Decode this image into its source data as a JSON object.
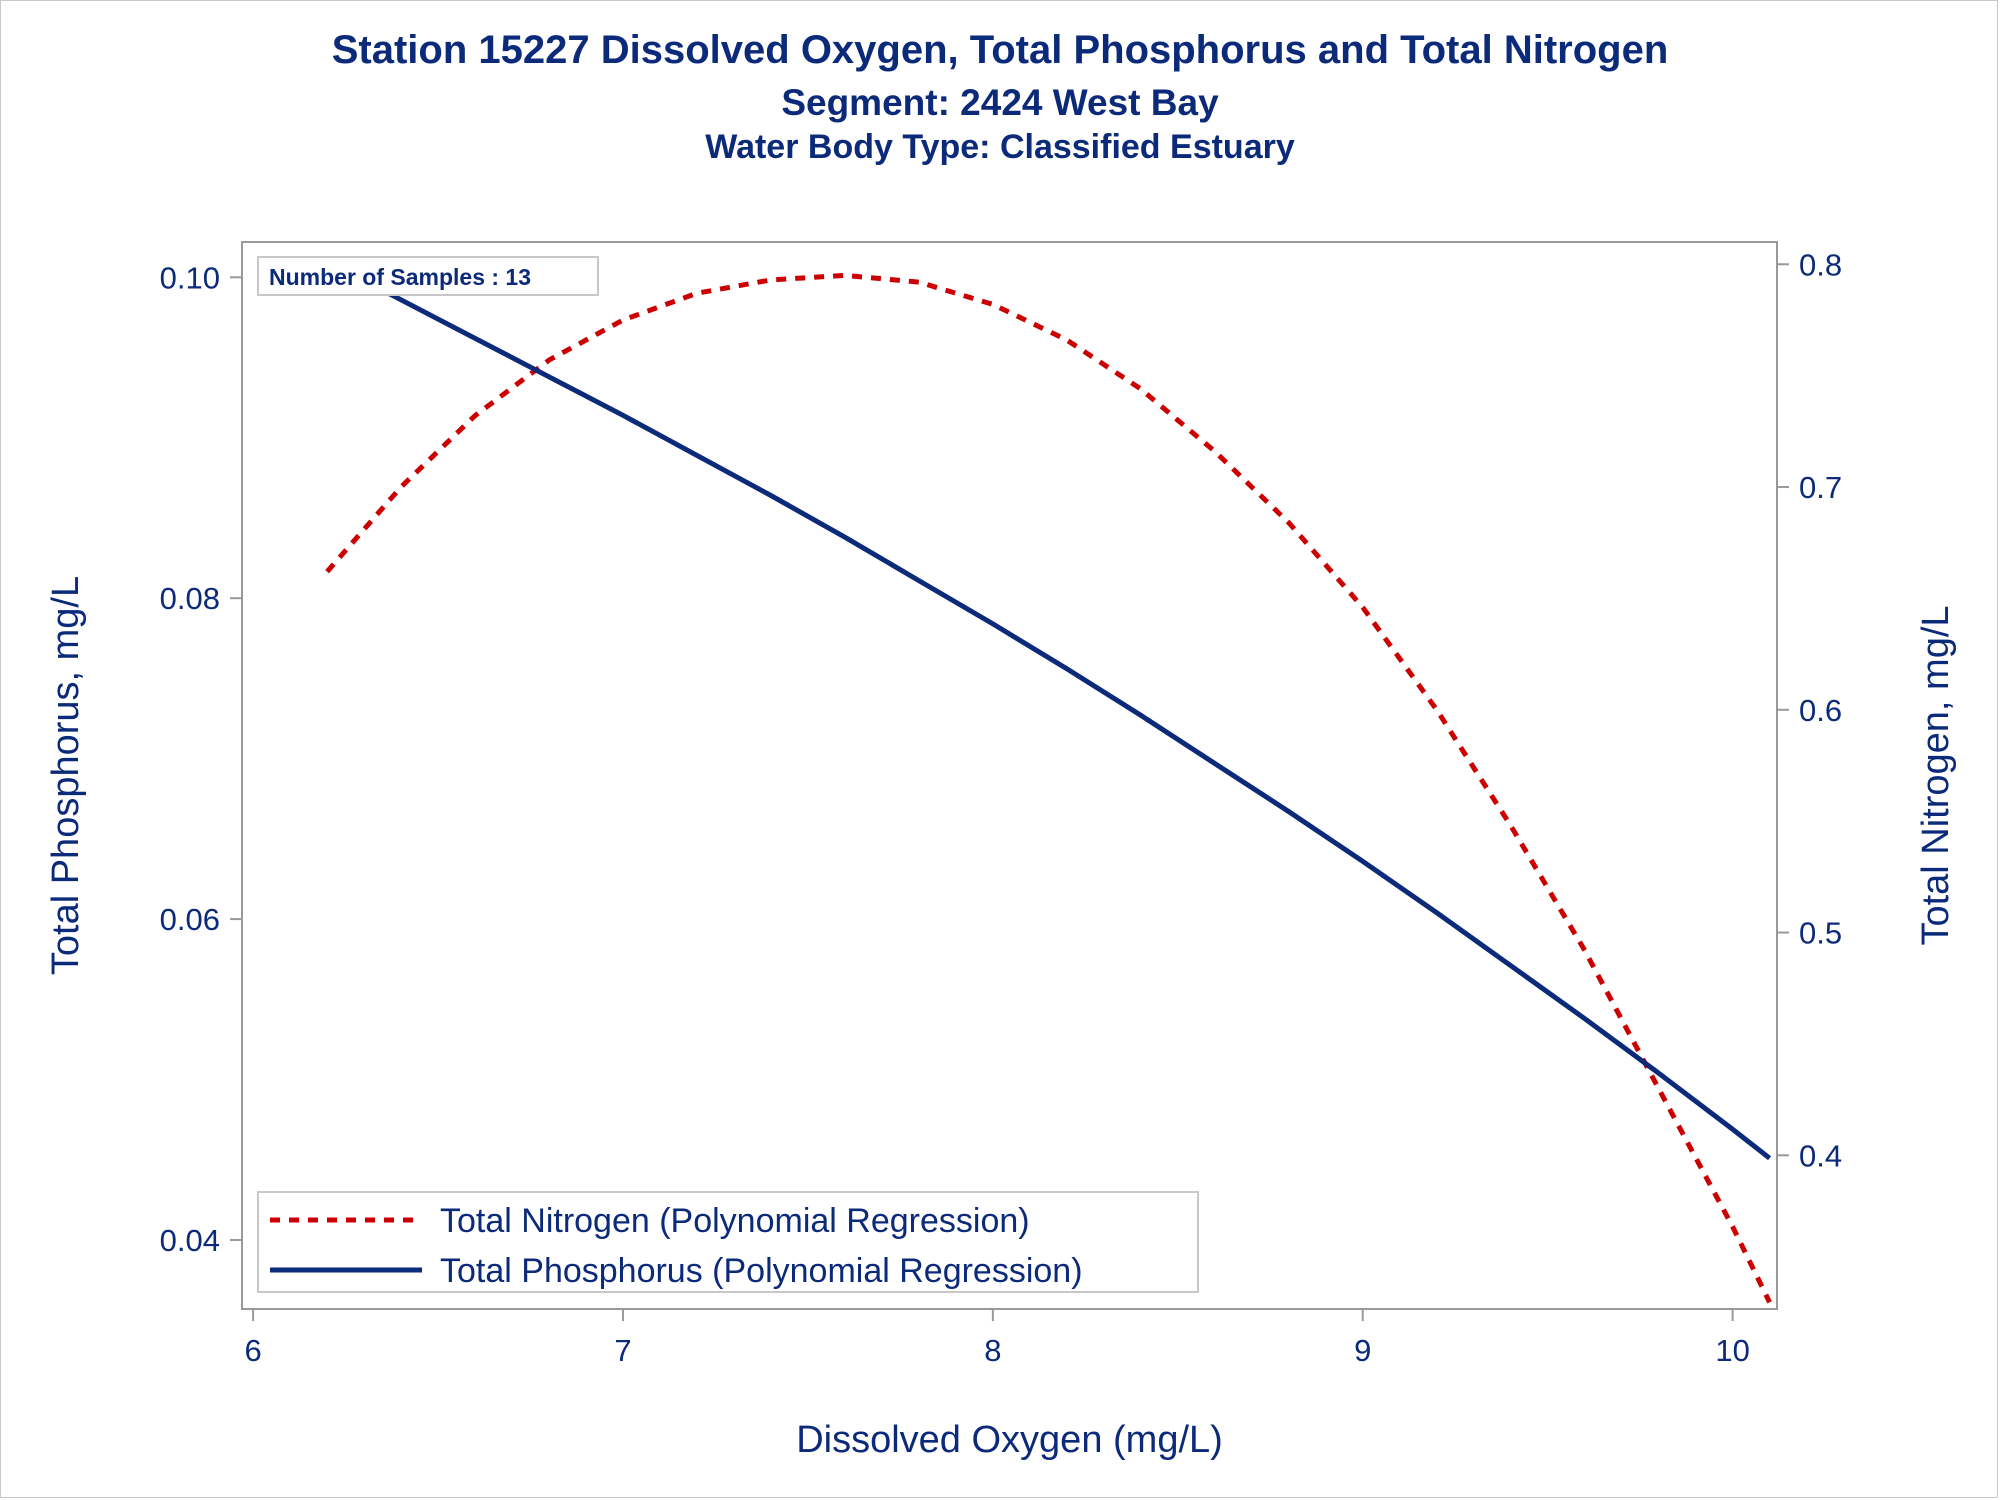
{
  "titles": {
    "main": "Station 15227  Dissolved Oxygen, Total Phosphorus and Total Nitrogen",
    "segment": "Segment: 2424  West Bay",
    "water_body": "Water Body Type: Classified Estuary"
  },
  "annotation": "Number of Samples : 13",
  "colors": {
    "text": "#0c2a7a",
    "nitrogen": "#cc0000",
    "phosphorus": "#0c2a7a",
    "axis": "#999999"
  },
  "chart_data": {
    "type": "line",
    "xlabel": "Dissolved Oxygen (mg/L)",
    "ylabel": "Total Phosphorus, mg/L",
    "y2label": "Total Nitrogen, mg/L",
    "xlim": [
      5.97,
      10.12
    ],
    "ylim": [
      0.0357,
      0.1022
    ],
    "y2lim": [
      0.331,
      0.81
    ],
    "xticks": [
      6,
      7,
      8,
      9,
      10
    ],
    "yticks": [
      0.04,
      0.06,
      0.08,
      0.1
    ],
    "y2ticks": [
      0.4,
      0.5,
      0.6,
      0.7,
      0.8
    ],
    "xtick_labels": [
      "6",
      "7",
      "8",
      "9",
      "10"
    ],
    "ytick_labels": [
      "0.04",
      "0.06",
      "0.08",
      "0.10"
    ],
    "y2tick_labels": [
      "0.4",
      "0.5",
      "0.6",
      "0.7",
      "0.8"
    ],
    "grid": false,
    "legend_position": "bottom-left",
    "series": [
      {
        "name": "Total Nitrogen (Polynomial Regression)",
        "axis": "right",
        "style": "dashed",
        "x": [
          6.2,
          6.4,
          6.6,
          6.8,
          7.0,
          7.2,
          7.4,
          7.6,
          7.8,
          8.0,
          8.2,
          8.4,
          8.6,
          8.8,
          9.0,
          9.2,
          9.4,
          9.6,
          9.8,
          10.0,
          10.1
        ],
        "values": [
          0.662,
          0.7,
          0.732,
          0.757,
          0.775,
          0.787,
          0.793,
          0.795,
          0.792,
          0.782,
          0.766,
          0.744,
          0.716,
          0.684,
          0.646,
          0.6,
          0.548,
          0.492,
          0.43,
          0.368,
          0.334
        ]
      },
      {
        "name": "Total Phosphorus (Polynomial Regression)",
        "axis": "left",
        "style": "solid",
        "x": [
          6.2,
          6.4,
          6.6,
          6.8,
          7.0,
          7.2,
          7.4,
          7.6,
          7.8,
          8.0,
          8.2,
          8.4,
          8.6,
          8.8,
          9.0,
          9.2,
          9.4,
          9.6,
          9.8,
          10.0,
          10.1
        ],
        "values": [
          0.101,
          0.0986,
          0.0962,
          0.0938,
          0.0914,
          0.0889,
          0.0864,
          0.0838,
          0.0811,
          0.0784,
          0.0756,
          0.0727,
          0.0697,
          0.0667,
          0.0636,
          0.0604,
          0.0571,
          0.0538,
          0.0504,
          0.0469,
          0.0451
        ]
      }
    ]
  }
}
